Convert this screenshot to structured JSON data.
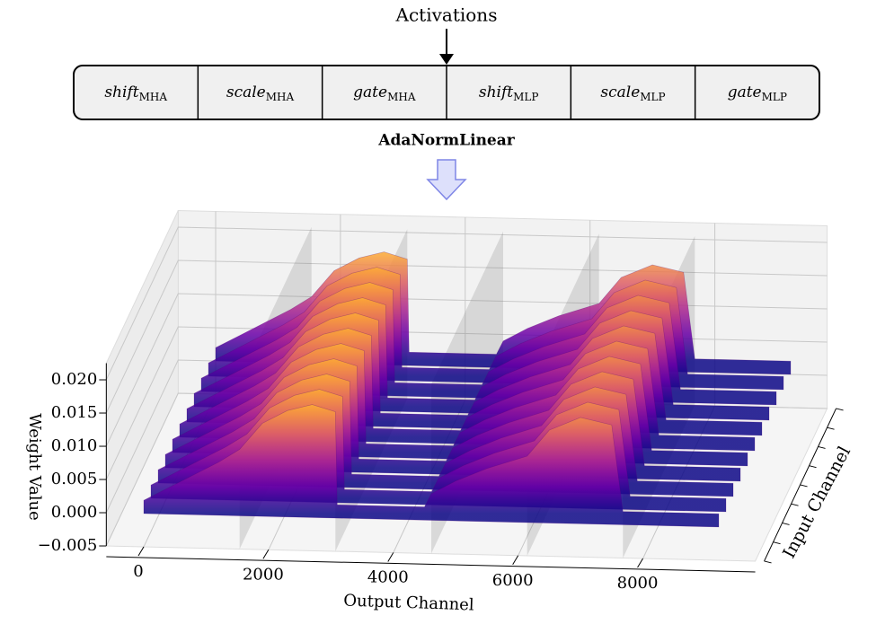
{
  "diagram": {
    "input_label": "Activations",
    "blocks": [
      {
        "name": "shift",
        "sub": "MHA"
      },
      {
        "name": "scale",
        "sub": "MHA"
      },
      {
        "name": "gate",
        "sub": "MHA"
      },
      {
        "name": "shift",
        "sub": "MLP"
      },
      {
        "name": "scale",
        "sub": "MLP"
      },
      {
        "name": "gate",
        "sub": "MLP"
      }
    ],
    "caption": "AdaNormLinear"
  },
  "chart_data": {
    "type": "surface",
    "xlabel": "Output Channel",
    "ylabel": "Input Channel",
    "zlabel": "Weight Value",
    "x": [
      0,
      400,
      800,
      1200,
      1536,
      1900,
      2300,
      2700,
      3072,
      3100,
      3500,
      4000,
      4500,
      4608,
      5000,
      5500,
      6144,
      6500,
      7000,
      7500,
      7680,
      8000,
      8500,
      9216
    ],
    "values": [
      0.002,
      0.004,
      0.006,
      0.008,
      0.01,
      0.014,
      0.016,
      0.017,
      0.016,
      0.002,
      0.002,
      0.002,
      0.002,
      0.004,
      0.006,
      0.008,
      0.01,
      0.014,
      0.016,
      0.015,
      0.002,
      0.002,
      0.002,
      0.002
    ],
    "colormap": "plasma",
    "xlim": [
      -600,
      9800
    ],
    "xticks": [
      0,
      2000,
      4000,
      6000,
      8000
    ],
    "zlim": [
      -0.005,
      0.0225
    ],
    "zticks": [
      {
        "value": -0.005,
        "label": "−0.005"
      },
      {
        "value": 0,
        "label": "0.000"
      },
      0.005,
      {
        "value": 0.01,
        "label": "0.010"
      },
      0.015,
      {
        "value": 0.02,
        "label": "0.020"
      }
    ],
    "grid": true
  }
}
